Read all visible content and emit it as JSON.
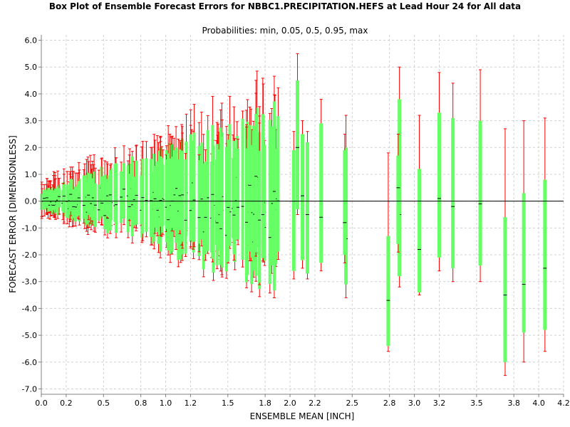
{
  "chart_data": {
    "type": "box",
    "title": "Box Plot of Ensemble Forecast Errors for NBBC1.PRECIPITATION.HEFS at Lead Hour 24 for All data",
    "subtitle": "Probabilities: min, 0.05, 0.5, 0.95, max",
    "xlabel": "ENSEMBLE MEAN [INCH]",
    "ylabel": "FORECAST ERROR [DIMENSIONLESS]",
    "xlim": [
      0.0,
      4.2
    ],
    "ylim": [
      -7.2,
      6.2
    ],
    "xticks": [
      "0.0",
      "0.2",
      "0.5",
      "0.8",
      "1.0",
      "1.2",
      "1.5",
      "1.8",
      "2.0",
      "2.2",
      "2.5",
      "2.8",
      "3.0",
      "3.2",
      "3.5",
      "3.8",
      "4.0",
      "4.2"
    ],
    "xtick_values": [
      0.0,
      0.2,
      0.5,
      0.8,
      1.0,
      1.2,
      1.5,
      1.8,
      2.0,
      2.2,
      2.5,
      2.8,
      3.0,
      3.2,
      3.5,
      3.8,
      4.0,
      4.2
    ],
    "yticks": [
      "6.0",
      "5.0",
      "4.0",
      "3.0",
      "2.0",
      "1.0",
      "0.0",
      "-1.0",
      "-2.0",
      "-3.0",
      "-4.0",
      "-5.0",
      "-6.0",
      "-7.0"
    ],
    "ytick_values": [
      6,
      5,
      4,
      3,
      2,
      1,
      0,
      -1,
      -2,
      -3,
      -4,
      -5,
      -6,
      -7
    ],
    "zero_line": 0.0,
    "grid": true,
    "colors": {
      "whisker": "#ff0000",
      "box": "#66ff66",
      "median": "#000000",
      "zero_line": "#000000"
    },
    "dense_region": {
      "x_range": [
        0.0,
        1.95
      ],
      "count": 170
    },
    "boxes": [
      {
        "x": 2.06,
        "min": -0.5,
        "p05": -0.3,
        "median": 2.0,
        "p95": 4.5,
        "max": 5.5
      },
      {
        "x": 2.03,
        "min": -2.9,
        "p05": -2.6,
        "median": 0.0,
        "p95": 1.9,
        "max": 2.6
      },
      {
        "x": 2.1,
        "min": -2.5,
        "p05": -2.2,
        "median": 0.2,
        "p95": 2.5,
        "max": 3.0
      },
      {
        "x": 2.14,
        "min": -2.9,
        "p05": -2.7,
        "median": -0.5,
        "p95": 2.2,
        "max": 2.6
      },
      {
        "x": 2.25,
        "min": -2.6,
        "p05": -2.3,
        "median": -0.6,
        "p95": 2.9,
        "max": 3.8
      },
      {
        "x": 2.45,
        "min": -3.6,
        "p05": -3.1,
        "median": -1.4,
        "p95": 2.0,
        "max": 3.2
      },
      {
        "x": 2.44,
        "min": -2.3,
        "p05": -2.0,
        "median": -0.8,
        "p95": 1.9,
        "max": 2.5
      },
      {
        "x": 2.79,
        "min": -5.6,
        "p05": -5.4,
        "median": -3.7,
        "p95": -1.3,
        "max": 1.8
      },
      {
        "x": 2.88,
        "min": -3.2,
        "p05": -2.8,
        "median": -0.5,
        "p95": 3.8,
        "max": 5.0
      },
      {
        "x": 2.87,
        "min": -1.9,
        "p05": -1.6,
        "median": 0.5,
        "p95": 1.7,
        "max": 2.5
      },
      {
        "x": 3.04,
        "min": -3.5,
        "p05": -3.4,
        "median": -1.8,
        "p95": 1.2,
        "max": 3.2
      },
      {
        "x": 3.2,
        "min": -2.6,
        "p05": -2.1,
        "median": 0.1,
        "p95": 3.3,
        "max": 4.8
      },
      {
        "x": 3.31,
        "min": -3.0,
        "p05": -2.5,
        "median": -0.2,
        "p95": 3.1,
        "max": 4.4
      },
      {
        "x": 3.53,
        "min": -3.0,
        "p05": -2.4,
        "median": -0.1,
        "p95": 3.0,
        "max": 4.9
      },
      {
        "x": 3.73,
        "min": -6.5,
        "p05": -6.0,
        "median": -3.5,
        "p95": -0.6,
        "max": 2.7
      },
      {
        "x": 3.88,
        "min": -6.0,
        "p05": -4.9,
        "median": -3.1,
        "p95": 0.3,
        "max": 3.0
      },
      {
        "x": 4.05,
        "min": -5.6,
        "p05": -4.8,
        "median": -2.5,
        "p95": 0.8,
        "max": 3.1
      }
    ]
  }
}
